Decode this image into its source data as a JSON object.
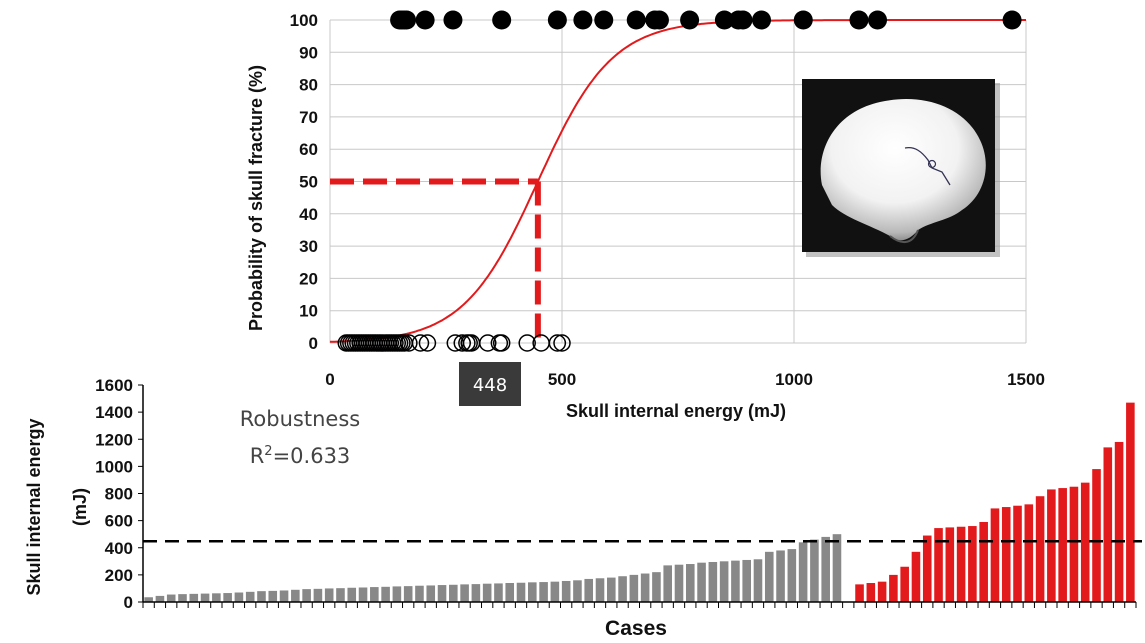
{
  "chart_data": [
    {
      "type": "scatter",
      "xlabel": "Skull internal energy (mJ)",
      "ylabel": "Probability of skull fracture (%)",
      "xlim": [
        0,
        1500
      ],
      "ylim": [
        0,
        100
      ],
      "x_ticks": [
        "0",
        "500",
        "1000",
        "1500"
      ],
      "y_ticks": [
        "0",
        "10",
        "20",
        "30",
        "40",
        "50",
        "60",
        "70",
        "80",
        "90",
        "100"
      ],
      "grid": true,
      "threshold_label": "448",
      "threshold_x": 448,
      "threshold_y": 50,
      "fracture_points": [
        150,
        155,
        160,
        165,
        205,
        265,
        370,
        490,
        545,
        590,
        660,
        700,
        710,
        775,
        850,
        880,
        890,
        930,
        1020,
        1140,
        1180,
        1470
      ],
      "no_fracture_points": [
        35,
        40,
        45,
        50,
        55,
        60,
        65,
        70,
        75,
        80,
        85,
        90,
        95,
        100,
        105,
        110,
        115,
        120,
        125,
        130,
        135,
        140,
        145,
        150,
        155,
        160,
        170,
        195,
        210,
        270,
        285,
        295,
        300,
        305,
        340,
        365,
        370,
        425,
        455,
        490,
        500
      ],
      "logistic_curve": {
        "midpoint": 448,
        "scale": 80,
        "color": "#e31a1c"
      }
    },
    {
      "type": "bar",
      "xlabel": "Cases",
      "ylabel": "Skull internal energy (mJ)",
      "ylim": [
        0,
        1600
      ],
      "y_ticks": [
        "0",
        "200",
        "400",
        "600",
        "800",
        "1000",
        "1200",
        "1400",
        "1600"
      ],
      "annotation": {
        "line1": "Robustness",
        "r2_prefix": "R",
        "r2_sup": "2",
        "r2_value": "=0.633"
      },
      "threshold_line": 448,
      "series": [
        {
          "color": "#888888",
          "values": [
            35,
            45,
            55,
            58,
            60,
            62,
            64,
            66,
            70,
            75,
            80,
            82,
            85,
            90,
            95,
            97,
            100,
            102,
            105,
            107,
            110,
            112,
            115,
            117,
            120,
            122,
            125,
            127,
            130,
            132,
            135,
            137,
            140,
            142,
            145,
            147,
            150,
            155,
            160,
            170,
            175,
            180,
            190,
            200,
            210,
            220,
            270,
            275,
            280,
            290,
            295,
            300,
            305,
            310,
            315,
            370,
            380,
            390,
            440,
            460,
            480,
            500
          ]
        },
        {
          "color": "#e31a1c",
          "values": [
            130,
            140,
            150,
            200,
            260,
            370,
            490,
            545,
            550,
            555,
            560,
            590,
            690,
            700,
            710,
            720,
            780,
            830,
            840,
            850,
            880,
            980,
            1140,
            1180,
            1470
          ]
        }
      ]
    }
  ]
}
